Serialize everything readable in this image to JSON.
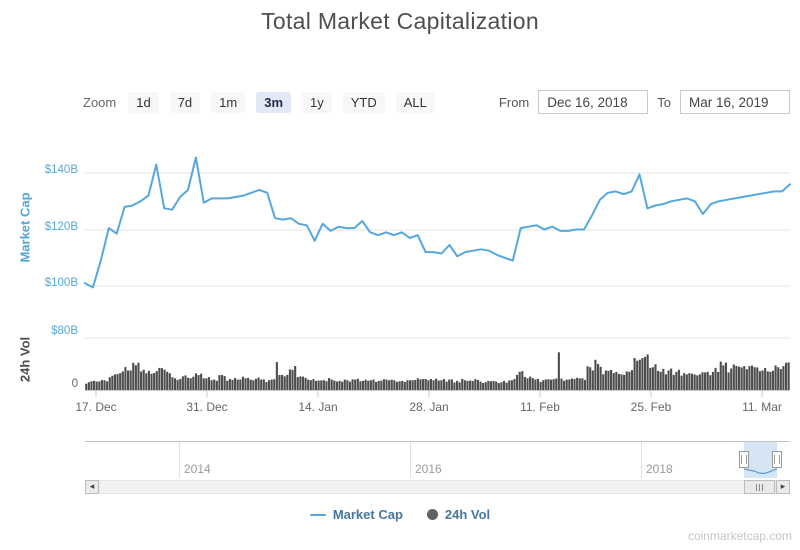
{
  "header": {
    "title": "Total Market Capitalization"
  },
  "controls": {
    "zoom_label": "Zoom",
    "zoom_buttons": [
      {
        "label": "1d",
        "selected": false
      },
      {
        "label": "7d",
        "selected": false
      },
      {
        "label": "1m",
        "selected": false
      },
      {
        "label": "3m",
        "selected": true
      },
      {
        "label": "1y",
        "selected": false
      },
      {
        "label": "YTD",
        "selected": false
      },
      {
        "label": "ALL",
        "selected": false
      }
    ],
    "from_label": "From",
    "from_value": "Dec 16, 2018",
    "to_label": "To",
    "to_value": "Mar 16, 2019"
  },
  "navigator": {
    "years": [
      "2014",
      "2016",
      "2018"
    ]
  },
  "legend": {
    "items": [
      {
        "label": "Market Cap",
        "marker": "line",
        "color": "#55a8dd"
      },
      {
        "label": "24h Vol",
        "marker": "circle",
        "color": "#616161"
      }
    ]
  },
  "watermark": "coinmarketcap.com",
  "chart_data": {
    "type": "line+column",
    "title": "Total Market Capitalization",
    "x_start": "Dec 16, 2018",
    "x_end": "Mar 16, 2019",
    "x_unit": "day",
    "x_ticks": [
      "17. Dec",
      "31. Dec",
      "14. Jan",
      "28. Jan",
      "11. Feb",
      "25. Feb",
      "11. Mar"
    ],
    "panes": [
      {
        "ylabel": "Market Cap",
        "yticks": [
          "$140B",
          "$120B",
          "$100B"
        ],
        "ylim": [
          95,
          150
        ],
        "unit": "USD billions",
        "grid": true
      },
      {
        "ylabel": "24h Vol",
        "yticks": [
          "$80B",
          "0"
        ],
        "ylim": [
          0,
          80
        ],
        "unit": "USD billions",
        "grid": true
      }
    ],
    "legend_position": "bottom-center",
    "series": [
      {
        "name": "Market Cap",
        "type": "line",
        "color": "#55a8dd",
        "values": [
          101,
          99.5,
          109,
          120.5,
          118.5,
          128,
          128.5,
          130,
          132,
          143,
          127.5,
          127,
          131.5,
          134,
          145.5,
          129.5,
          131,
          131,
          131,
          131.5,
          132,
          133,
          134,
          133,
          124,
          123.5,
          124,
          122,
          121.5,
          116,
          122,
          119.5,
          121,
          120.5,
          120.5,
          123,
          119,
          118,
          119,
          118,
          119,
          117,
          118,
          112,
          112,
          111.5,
          114.5,
          110.5,
          112,
          112.5,
          113,
          112.5,
          111,
          110,
          109,
          120.5,
          121,
          121.5,
          120,
          121,
          119.5,
          119.5,
          120,
          120,
          125,
          130.5,
          133,
          133.5,
          132.5,
          133.5,
          139.5,
          127.5,
          128.5,
          129,
          130,
          130.5,
          131,
          130,
          125.5,
          129,
          130,
          130.5,
          131,
          131.5,
          132,
          132.5,
          133,
          133.5,
          133.5,
          136
        ]
      },
      {
        "name": "24h Vol",
        "type": "column",
        "color": "#4d4d4d",
        "values": [
          12,
          13,
          15,
          22,
          26,
          30,
          38,
          31,
          25,
          34,
          28,
          18,
          21,
          18,
          23,
          18,
          16,
          23,
          17,
          16,
          18,
          15,
          16,
          15,
          43,
          21,
          31,
          21,
          16,
          14,
          15,
          16,
          14,
          15,
          16,
          14,
          15,
          14,
          16,
          15,
          14,
          15,
          18,
          17,
          15,
          15,
          16,
          14,
          15,
          14,
          13,
          14,
          13,
          14,
          15,
          28,
          18,
          16,
          15,
          16,
          58,
          16,
          17,
          18,
          35,
          40,
          30,
          26,
          24,
          28,
          45,
          51,
          35,
          28,
          30,
          28,
          26,
          25,
          24,
          28,
          34,
          38,
          33,
          36,
          32,
          35,
          30,
          28,
          35,
          42
        ]
      }
    ]
  }
}
